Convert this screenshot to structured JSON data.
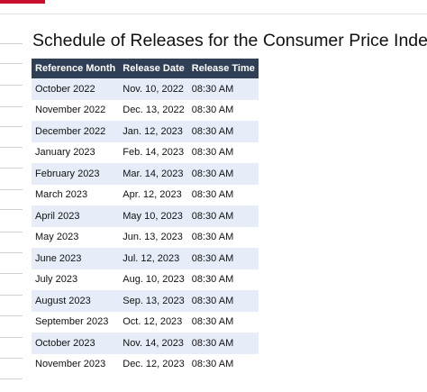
{
  "title": "Schedule of Releases for the Consumer Price Index",
  "table": {
    "header": [
      "Reference Month",
      "Release Date",
      "Release Time"
    ],
    "rows": [
      [
        "October 2022",
        "Nov. 10, 2022",
        "08:30 AM"
      ],
      [
        "November 2022",
        "Dec. 13, 2022",
        "08:30 AM"
      ],
      [
        "December 2022",
        "Jan. 12, 2023",
        "08:30 AM"
      ],
      [
        "January 2023",
        "Feb. 14, 2023",
        "08:30 AM"
      ],
      [
        "February 2023",
        "Mar. 14, 2023",
        "08:30 AM"
      ],
      [
        "March 2023",
        "Apr. 12, 2023",
        "08:30 AM"
      ],
      [
        "April 2023",
        "May 10, 2023",
        "08:30 AM"
      ],
      [
        "May 2023",
        "Jun. 13, 2023",
        "08:30 AM"
      ],
      [
        "June 2023",
        "Jul. 12, 2023",
        "08:30 AM"
      ],
      [
        "July 2023",
        "Aug. 10, 2023",
        "08:30 AM"
      ],
      [
        "August 2023",
        "Sep. 13, 2023",
        "08:30 AM"
      ],
      [
        "September 2023",
        "Oct. 12, 2023",
        "08:30 AM"
      ],
      [
        "October 2023",
        "Nov. 14, 2023",
        "08:30 AM"
      ],
      [
        "November 2023",
        "Dec. 12, 2023",
        "08:30 AM"
      ]
    ]
  }
}
